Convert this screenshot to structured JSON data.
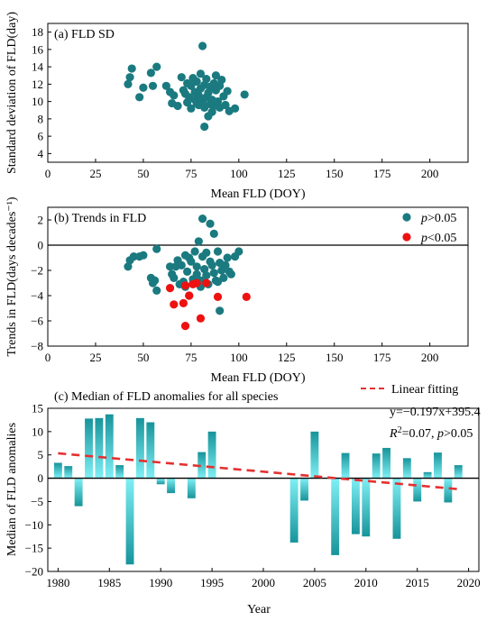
{
  "colors": {
    "teal": "#1a7a80",
    "red": "#ee1111",
    "bar_top": "#17949b",
    "bar_bottom": "#7ff0f5",
    "fit_line": "#e53030"
  },
  "chart_data": [
    {
      "type": "scatter",
      "title": "(a) FLD SD",
      "xlabel": "Mean FLD (DOY)",
      "ylabel": "Standard deviation of FLD(day)",
      "xlim": [
        0,
        220
      ],
      "ylim": [
        3,
        19
      ],
      "xticks": [
        0,
        25,
        50,
        75,
        100,
        125,
        150,
        175,
        200
      ],
      "yticks": [
        4,
        6,
        8,
        10,
        12,
        14,
        16,
        18
      ],
      "grid": false,
      "series": [
        {
          "points": [
            [
              42,
              12.0
            ],
            [
              43,
              12.8
            ],
            [
              44,
              13.8
            ],
            [
              48,
              10.5
            ],
            [
              50,
              11.6
            ],
            [
              54,
              13.3
            ],
            [
              55,
              11.8
            ],
            [
              57,
              14.0
            ],
            [
              62,
              11.8
            ],
            [
              64,
              11.1
            ],
            [
              65,
              9.8
            ],
            [
              66,
              10.7
            ],
            [
              68,
              9.5
            ],
            [
              70,
              12.8
            ],
            [
              71,
              11.3
            ],
            [
              72,
              10.9
            ],
            [
              73,
              9.9
            ],
            [
              73,
              12.1
            ],
            [
              74,
              10.5
            ],
            [
              75,
              11.8
            ],
            [
              75,
              9.2
            ],
            [
              76,
              12.7
            ],
            [
              77,
              10.2
            ],
            [
              77,
              11.1
            ],
            [
              78,
              9.8
            ],
            [
              78,
              12.3
            ],
            [
              79,
              10.7
            ],
            [
              79,
              9.6
            ],
            [
              80,
              11.5
            ],
            [
              80,
              13.2
            ],
            [
              81,
              16.4
            ],
            [
              81,
              10.0
            ],
            [
              82,
              11.9
            ],
            [
              82,
              9.3
            ],
            [
              82,
              7.1
            ],
            [
              83,
              10.5
            ],
            [
              83,
              12.6
            ],
            [
              84,
              8.3
            ],
            [
              84,
              11.0
            ],
            [
              85,
              9.7
            ],
            [
              85,
              11.7
            ],
            [
              86,
              8.8
            ],
            [
              86,
              10.2
            ],
            [
              87,
              12.1
            ],
            [
              87,
              9.5
            ],
            [
              88,
              13.0
            ],
            [
              88,
              11.3
            ],
            [
              89,
              10.0
            ],
            [
              90,
              9.3
            ],
            [
              90,
              11.8
            ],
            [
              91,
              12.5
            ],
            [
              92,
              10.6
            ],
            [
              93,
              9.6
            ],
            [
              94,
              11.2
            ],
            [
              95,
              8.9
            ],
            [
              98,
              9.2
            ],
            [
              103,
              10.8
            ]
          ]
        }
      ]
    },
    {
      "type": "scatter",
      "title": "(b) Trends in FLD",
      "xlabel": "Mean FLD (DOY)",
      "ylabel": "Trends in FLD(days decades⁻¹)",
      "xlim": [
        0,
        220
      ],
      "ylim": [
        -8,
        3
      ],
      "xticks": [
        0,
        25,
        50,
        75,
        100,
        125,
        150,
        175,
        200
      ],
      "yticks": [
        -8,
        -6,
        -4,
        -2,
        0,
        2
      ],
      "grid": false,
      "legend_position": "top-right",
      "legend": [
        {
          "italic": "p",
          "rest": ">0.05"
        },
        {
          "italic": "p",
          "rest": "<0.05"
        }
      ],
      "series": [
        {
          "name": "p>0.05",
          "points": [
            [
              42,
              -1.7
            ],
            [
              43,
              -1.2
            ],
            [
              45,
              -0.9
            ],
            [
              48,
              -0.9
            ],
            [
              50,
              -0.8
            ],
            [
              54,
              -2.6
            ],
            [
              55,
              -3.0
            ],
            [
              56,
              -2.8
            ],
            [
              57,
              -0.3
            ],
            [
              57,
              -3.6
            ],
            [
              64,
              -1.7
            ],
            [
              65,
              -2.3
            ],
            [
              66,
              -2.6
            ],
            [
              67,
              -1.7
            ],
            [
              68,
              -1.2
            ],
            [
              69,
              -3.1
            ],
            [
              70,
              -1.6
            ],
            [
              71,
              -2.9
            ],
            [
              72,
              -0.8
            ],
            [
              72,
              -3.3
            ],
            [
              73,
              -2.1
            ],
            [
              74,
              -1.0
            ],
            [
              74,
              -4.0
            ],
            [
              75,
              -1.3
            ],
            [
              76,
              -2.7
            ],
            [
              76,
              -3.0
            ],
            [
              77,
              -0.5
            ],
            [
              78,
              -1.7
            ],
            [
              78,
              -2.3
            ],
            [
              79,
              0.3
            ],
            [
              80,
              -2.8
            ],
            [
              80,
              -3.3
            ],
            [
              81,
              -0.9
            ],
            [
              81,
              2.1
            ],
            [
              82,
              -1.9
            ],
            [
              83,
              -2.4
            ],
            [
              83,
              -0.6
            ],
            [
              84,
              -3.1
            ],
            [
              85,
              1.7
            ],
            [
              85,
              -1.3
            ],
            [
              86,
              -1.6
            ],
            [
              87,
              -2.2
            ],
            [
              87,
              0.9
            ],
            [
              88,
              -2.8
            ],
            [
              89,
              -0.5
            ],
            [
              89,
              -2.9
            ],
            [
              90,
              -1.4
            ],
            [
              90,
              -5.2
            ],
            [
              91,
              -2.0
            ],
            [
              92,
              -2.6
            ],
            [
              93,
              -1.6
            ],
            [
              94,
              -1.0
            ],
            [
              95,
              -2.1
            ],
            [
              96,
              -2.3
            ],
            [
              98,
              -0.9
            ],
            [
              100,
              -0.5
            ]
          ]
        },
        {
          "name": "p<0.05",
          "points": [
            [
              64,
              -3.4
            ],
            [
              66,
              -4.7
            ],
            [
              71,
              -4.6
            ],
            [
              72,
              -3.2
            ],
            [
              72,
              -6.4
            ],
            [
              74,
              -4.0
            ],
            [
              76,
              -3.1
            ],
            [
              78,
              -3.0
            ],
            [
              80,
              -5.8
            ],
            [
              83,
              -3.0
            ],
            [
              89,
              -4.1
            ],
            [
              104,
              -4.1
            ]
          ]
        }
      ]
    },
    {
      "type": "bar",
      "title": "(c) Median of FLD anomalies for all species",
      "xlabel": "Year",
      "ylabel": "Median of FLD anomalies",
      "xlim": [
        1979,
        2021
      ],
      "ylim": [
        -20,
        15
      ],
      "xticks": [
        1980,
        1985,
        1990,
        1995,
        2000,
        2005,
        2010,
        2015,
        2020
      ],
      "yticks": [
        -20,
        -15,
        -10,
        -5,
        0,
        5,
        10,
        15
      ],
      "grid": false,
      "legend_position": "top-right",
      "fit_label": "Linear fitting",
      "equation": "y=−0.197x+395.4",
      "stats_parts": [
        {
          "text": "R",
          "italic": true
        },
        {
          "text": "2",
          "italic": false,
          "sup": true
        },
        {
          "text": "=0.07, ",
          "italic": false
        },
        {
          "text": "p",
          "italic": true
        },
        {
          "text": ">0.05",
          "italic": false
        }
      ],
      "fit": {
        "slope": -0.197,
        "intercept": 395.4
      },
      "bars": [
        {
          "year": 1980,
          "value": 3.3
        },
        {
          "year": 1981,
          "value": 2.6
        },
        {
          "year": 1982,
          "value": -6.0
        },
        {
          "year": 1983,
          "value": 12.8
        },
        {
          "year": 1984,
          "value": 12.9
        },
        {
          "year": 1985,
          "value": 13.7
        },
        {
          "year": 1986,
          "value": 2.8
        },
        {
          "year": 1987,
          "value": -18.5
        },
        {
          "year": 1988,
          "value": 12.9
        },
        {
          "year": 1989,
          "value": 12.0
        },
        {
          "year": 1990,
          "value": -1.3
        },
        {
          "year": 1991,
          "value": -3.2
        },
        {
          "year": 1993,
          "value": -4.3
        },
        {
          "year": 1994,
          "value": 5.6
        },
        {
          "year": 1995,
          "value": 10.0
        },
        {
          "year": 2003,
          "value": -13.8
        },
        {
          "year": 2004,
          "value": -4.8
        },
        {
          "year": 2005,
          "value": 10.0
        },
        {
          "year": 2007,
          "value": -16.5
        },
        {
          "year": 2008,
          "value": 5.4
        },
        {
          "year": 2009,
          "value": -12.0
        },
        {
          "year": 2010,
          "value": -12.5
        },
        {
          "year": 2011,
          "value": 5.3
        },
        {
          "year": 2012,
          "value": 6.5
        },
        {
          "year": 2013,
          "value": -13.0
        },
        {
          "year": 2014,
          "value": 4.3
        },
        {
          "year": 2015,
          "value": -5.0
        },
        {
          "year": 2016,
          "value": 1.3
        },
        {
          "year": 2017,
          "value": 5.5
        },
        {
          "year": 2018,
          "value": -5.2
        },
        {
          "year": 2019,
          "value": 2.8
        }
      ]
    }
  ]
}
